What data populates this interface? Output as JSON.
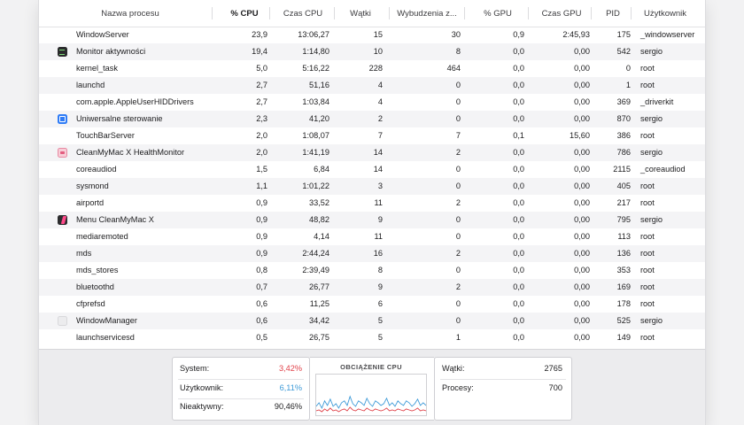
{
  "columns": [
    {
      "key": "name",
      "label": "Nazwa procesu"
    },
    {
      "key": "cpu",
      "label": "% CPU"
    },
    {
      "key": "cpu_time",
      "label": "Czas CPU"
    },
    {
      "key": "threads",
      "label": "Wątki"
    },
    {
      "key": "wakeups",
      "label": "Wybudzenia z..."
    },
    {
      "key": "gpu",
      "label": "% GPU"
    },
    {
      "key": "gpu_time",
      "label": "Czas GPU"
    },
    {
      "key": "pid",
      "label": "PID"
    },
    {
      "key": "user",
      "label": "Użytkownik"
    }
  ],
  "processes": [
    {
      "name": "WindowServer",
      "icon": "",
      "cpu": "23,9",
      "cpu_time": "13:06,27",
      "threads": "15",
      "wakeups": "30",
      "gpu": "0,9",
      "gpu_time": "2:45,93",
      "pid": "175",
      "user": "_windowserver"
    },
    {
      "name": "Monitor aktywności",
      "icon": "terminal-app-icon",
      "cpu": "19,4",
      "cpu_time": "1:14,80",
      "threads": "10",
      "wakeups": "8",
      "gpu": "0,0",
      "gpu_time": "0,00",
      "pid": "542",
      "user": "sergio"
    },
    {
      "name": "kernel_task",
      "icon": "",
      "cpu": "5,0",
      "cpu_time": "5:16,22",
      "threads": "228",
      "wakeups": "464",
      "gpu": "0,0",
      "gpu_time": "0,00",
      "pid": "0",
      "user": "root"
    },
    {
      "name": "launchd",
      "icon": "",
      "cpu": "2,7",
      "cpu_time": "51,16",
      "threads": "4",
      "wakeups": "0",
      "gpu": "0,0",
      "gpu_time": "0,00",
      "pid": "1",
      "user": "root"
    },
    {
      "name": "com.apple.AppleUserHIDDrivers",
      "icon": "",
      "cpu": "2,7",
      "cpu_time": "1:03,84",
      "threads": "4",
      "wakeups": "0",
      "gpu": "0,0",
      "gpu_time": "0,00",
      "pid": "369",
      "user": "_driverkit"
    },
    {
      "name": "Uniwersalne sterowanie",
      "icon": "universal-control-icon",
      "cpu": "2,3",
      "cpu_time": "41,20",
      "threads": "2",
      "wakeups": "0",
      "gpu": "0,0",
      "gpu_time": "0,00",
      "pid": "870",
      "user": "sergio"
    },
    {
      "name": "TouchBarServer",
      "icon": "",
      "cpu": "2,0",
      "cpu_time": "1:08,07",
      "threads": "7",
      "wakeups": "7",
      "gpu": "0,1",
      "gpu_time": "15,60",
      "pid": "386",
      "user": "root"
    },
    {
      "name": "CleanMyMac X HealthMonitor",
      "icon": "cleanmymac-health-icon",
      "cpu": "2,0",
      "cpu_time": "1:41,19",
      "threads": "14",
      "wakeups": "2",
      "gpu": "0,0",
      "gpu_time": "0,00",
      "pid": "786",
      "user": "sergio"
    },
    {
      "name": "coreaudiod",
      "icon": "",
      "cpu": "1,5",
      "cpu_time": "6,84",
      "threads": "14",
      "wakeups": "0",
      "gpu": "0,0",
      "gpu_time": "0,00",
      "pid": "2115",
      "user": "_coreaudiod"
    },
    {
      "name": "sysmond",
      "icon": "",
      "cpu": "1,1",
      "cpu_time": "1:01,22",
      "threads": "3",
      "wakeups": "0",
      "gpu": "0,0",
      "gpu_time": "0,00",
      "pid": "405",
      "user": "root"
    },
    {
      "name": "airportd",
      "icon": "",
      "cpu": "0,9",
      "cpu_time": "33,52",
      "threads": "11",
      "wakeups": "2",
      "gpu": "0,0",
      "gpu_time": "0,00",
      "pid": "217",
      "user": "root"
    },
    {
      "name": "Menu CleanMyMac X",
      "icon": "cleanmymac-menu-icon",
      "cpu": "0,9",
      "cpu_time": "48,82",
      "threads": "9",
      "wakeups": "0",
      "gpu": "0,0",
      "gpu_time": "0,00",
      "pid": "795",
      "user": "sergio"
    },
    {
      "name": "mediaremoted",
      "icon": "",
      "cpu": "0,9",
      "cpu_time": "4,14",
      "threads": "11",
      "wakeups": "0",
      "gpu": "0,0",
      "gpu_time": "0,00",
      "pid": "113",
      "user": "root"
    },
    {
      "name": "mds",
      "icon": "",
      "cpu": "0,9",
      "cpu_time": "2:44,24",
      "threads": "16",
      "wakeups": "2",
      "gpu": "0,0",
      "gpu_time": "0,00",
      "pid": "136",
      "user": "root"
    },
    {
      "name": "mds_stores",
      "icon": "",
      "cpu": "0,8",
      "cpu_time": "2:39,49",
      "threads": "8",
      "wakeups": "0",
      "gpu": "0,0",
      "gpu_time": "0,00",
      "pid": "353",
      "user": "root"
    },
    {
      "name": "bluetoothd",
      "icon": "",
      "cpu": "0,7",
      "cpu_time": "26,77",
      "threads": "9",
      "wakeups": "2",
      "gpu": "0,0",
      "gpu_time": "0,00",
      "pid": "169",
      "user": "root"
    },
    {
      "name": "cfprefsd",
      "icon": "",
      "cpu": "0,6",
      "cpu_time": "11,25",
      "threads": "6",
      "wakeups": "0",
      "gpu": "0,0",
      "gpu_time": "0,00",
      "pid": "178",
      "user": "root"
    },
    {
      "name": "WindowManager",
      "icon": "window-manager-icon",
      "cpu": "0,6",
      "cpu_time": "34,42",
      "threads": "5",
      "wakeups": "0",
      "gpu": "0,0",
      "gpu_time": "0,00",
      "pid": "525",
      "user": "sergio"
    },
    {
      "name": "launchservicesd",
      "icon": "",
      "cpu": "0,5",
      "cpu_time": "26,75",
      "threads": "5",
      "wakeups": "1",
      "gpu": "0,0",
      "gpu_time": "0,00",
      "pid": "149",
      "user": "root"
    }
  ],
  "summary": {
    "system_label": "System:",
    "system_value": "3,42%",
    "user_label": "Użytkownik:",
    "user_value": "6,11%",
    "idle_label": "Nieaktywny:",
    "idle_value": "90,46%",
    "graph_title": "OBCIĄŻENIE CPU",
    "threads_label": "Wątki:",
    "threads_value": "2765",
    "processes_label": "Procesy:",
    "processes_value": "700"
  },
  "colors": {
    "system": "#e0424a",
    "user": "#3f9bd8",
    "sort_column": "#1d1d1f"
  },
  "cpu_load_graph": {
    "system": [
      3,
      4,
      2,
      5,
      3,
      6,
      3,
      4,
      2,
      4,
      5,
      3,
      7,
      4,
      3,
      5,
      4,
      3,
      6,
      4,
      3,
      5,
      4,
      3,
      4,
      6,
      3,
      4,
      3,
      5,
      4,
      3,
      5,
      4,
      3,
      4,
      6,
      3,
      4,
      3
    ],
    "user": [
      5,
      8,
      4,
      9,
      6,
      10,
      5,
      7,
      4,
      8,
      9,
      6,
      12,
      7,
      5,
      9,
      8,
      6,
      11,
      7,
      5,
      9,
      8,
      6,
      7,
      11,
      6,
      8,
      5,
      9,
      7,
      6,
      9,
      8,
      5,
      7,
      10,
      6,
      8,
      6
    ]
  }
}
